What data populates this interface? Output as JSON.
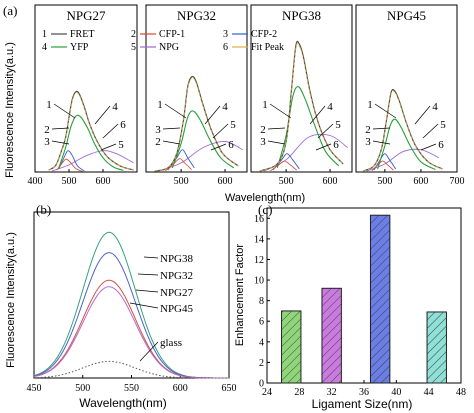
{
  "figure": {
    "panel_labels": [
      "(a)",
      "(b)",
      "(c)"
    ]
  },
  "chart_data": [
    {
      "panel": "(a)",
      "type": "line",
      "ylabel": "Fluorescence Intensity(a.u.)",
      "xlabel": "Wavelength(nm)",
      "xticks_by_sample": [
        [
          400,
          500,
          600
        ],
        [
          500,
          600
        ],
        [
          500,
          600
        ],
        [
          500,
          600,
          700
        ]
      ],
      "legend": [
        {
          "num": "1",
          "name": "FRET",
          "color": "#4a4a4a"
        },
        {
          "num": "2",
          "name": "CFP-1",
          "color": "#d9442b"
        },
        {
          "num": "3",
          "name": "CFP-2",
          "color": "#2f5fd0"
        },
        {
          "num": "4",
          "name": "YFP",
          "color": "#27a23c"
        },
        {
          "num": "5",
          "name": "NPG",
          "color": "#a36bd6"
        },
        {
          "num": "6",
          "name": "Fit Peak",
          "color": "#e0b03a"
        }
      ],
      "subplots": [
        {
          "name": "NPG27",
          "xlim": [
            400,
            700
          ],
          "peak": 395,
          "fret": [
            [
              440,
              10
            ],
            [
              460,
              30
            ],
            [
              475,
              90
            ],
            [
              490,
              170
            ],
            [
              500,
              270
            ],
            [
              510,
              360
            ],
            [
              520,
              395
            ],
            [
              530,
              385
            ],
            [
              545,
              320
            ],
            [
              560,
              240
            ],
            [
              580,
              160
            ],
            [
              610,
              80
            ],
            [
              650,
              30
            ],
            [
              690,
              10
            ]
          ],
          "yfp": [
            [
              470,
              20
            ],
            [
              490,
              120
            ],
            [
              505,
              220
            ],
            [
              520,
              275
            ],
            [
              535,
              270
            ],
            [
              555,
              215
            ],
            [
              575,
              140
            ],
            [
              600,
              70
            ],
            [
              630,
              25
            ],
            [
              660,
              8
            ]
          ],
          "cfp": [
            [
              470,
              15
            ],
            [
              485,
              70
            ],
            [
              497,
              105
            ],
            [
              510,
              80
            ],
            [
              525,
              30
            ],
            [
              545,
              5
            ]
          ],
          "npg": [
            [
              450,
              5
            ],
            [
              500,
              35
            ],
            [
              550,
              80
            ],
            [
              600,
              105
            ],
            [
              640,
              90
            ],
            [
              690,
              45
            ]
          ],
          "callouts": [
            "1",
            "2",
            "3",
            "4",
            "6",
            "5"
          ]
        },
        {
          "name": "NPG32",
          "xlim": [
            420,
            650
          ],
          "peak": 470,
          "fret": [
            [
              440,
              5
            ],
            [
              470,
              20
            ],
            [
              490,
              90
            ],
            [
              505,
              250
            ],
            [
              515,
              420
            ],
            [
              525,
              470
            ],
            [
              535,
              440
            ],
            [
              550,
              330
            ],
            [
              570,
              200
            ],
            [
              595,
              90
            ],
            [
              630,
              30
            ]
          ],
          "yfp": [
            [
              480,
              20
            ],
            [
              500,
              140
            ],
            [
              515,
              270
            ],
            [
              528,
              300
            ],
            [
              545,
              250
            ],
            [
              565,
              160
            ],
            [
              590,
              70
            ],
            [
              620,
              20
            ]
          ],
          "cfp": [
            [
              470,
              10
            ],
            [
              490,
              70
            ],
            [
              503,
              110
            ],
            [
              515,
              70
            ],
            [
              530,
              20
            ]
          ],
          "npg": [
            [
              450,
              5
            ],
            [
              500,
              45
            ],
            [
              550,
              120
            ],
            [
              600,
              150
            ],
            [
              640,
              110
            ]
          ],
          "callouts": [
            "1",
            "3",
            "2",
            "4",
            "5",
            "6"
          ]
        },
        {
          "name": "NPG38",
          "xlim": [
            420,
            650
          ],
          "peak": 630,
          "fret": [
            [
              440,
              5
            ],
            [
              480,
              40
            ],
            [
              500,
              150
            ],
            [
              512,
              400
            ],
            [
              522,
              620
            ],
            [
              530,
              630
            ],
            [
              540,
              560
            ],
            [
              555,
              390
            ],
            [
              575,
              230
            ],
            [
              600,
              110
            ],
            [
              630,
              40
            ]
          ],
          "yfp": [
            [
              480,
              20
            ],
            [
              500,
              180
            ],
            [
              515,
              370
            ],
            [
              528,
              420
            ],
            [
              545,
              350
            ],
            [
              565,
              230
            ],
            [
              590,
              100
            ],
            [
              620,
              30
            ]
          ],
          "cfp": [
            [
              470,
              10
            ],
            [
              490,
              60
            ],
            [
              502,
              90
            ],
            [
              515,
              60
            ],
            [
              530,
              15
            ]
          ],
          "npg": [
            [
              450,
              5
            ],
            [
              500,
              60
            ],
            [
              550,
              170
            ],
            [
              600,
              180
            ],
            [
              640,
              120
            ]
          ],
          "callouts": [
            "1",
            "2",
            "3",
            "4",
            "5",
            "6"
          ]
        },
        {
          "name": "NPG45",
          "xlim": [
            420,
            700
          ],
          "peak": 400,
          "fret": [
            [
              440,
              5
            ],
            [
              470,
              30
            ],
            [
              490,
              110
            ],
            [
              505,
              260
            ],
            [
              517,
              390
            ],
            [
              527,
              400
            ],
            [
              540,
              350
            ],
            [
              560,
              240
            ],
            [
              585,
              130
            ],
            [
              620,
              50
            ],
            [
              660,
              15
            ]
          ],
          "yfp": [
            [
              480,
              15
            ],
            [
              500,
              130
            ],
            [
              515,
              230
            ],
            [
              528,
              260
            ],
            [
              545,
              220
            ],
            [
              570,
              130
            ],
            [
              600,
              50
            ],
            [
              640,
              12
            ]
          ],
          "cfp": [
            [
              470,
              10
            ],
            [
              487,
              60
            ],
            [
              500,
              90
            ],
            [
              513,
              60
            ],
            [
              530,
              15
            ]
          ],
          "npg": [
            [
              450,
              5
            ],
            [
              500,
              40
            ],
            [
              550,
              100
            ],
            [
              600,
              110
            ],
            [
              650,
              70
            ]
          ],
          "callouts": [
            "1",
            "2",
            "3",
            "4",
            "5",
            "6"
          ]
        }
      ]
    },
    {
      "panel": "(b)",
      "type": "line",
      "xlabel": "Wavelength(nm)",
      "ylabel": "Fluorescence Intensity(a.u.)",
      "xlim": [
        450,
        650
      ],
      "xticks": [
        450,
        500,
        550,
        600,
        650
      ],
      "ylim": [
        0,
        180
      ],
      "peak_x": 527,
      "width": 38,
      "series": [
        {
          "name": "NPG38",
          "peak": 158,
          "color": "#35a37a",
          "style": "solid"
        },
        {
          "name": "NPG32",
          "peak": 136,
          "color": "#4a63c9",
          "style": "solid"
        },
        {
          "name": "NPG27",
          "peak": 106,
          "color": "#d0534a",
          "style": "solid"
        },
        {
          "name": "NPG45",
          "peak": 99,
          "color": "#b86bc8",
          "style": "solid"
        },
        {
          "name": "glass",
          "peak": 18,
          "color": "#555555",
          "style": "dotted"
        }
      ]
    },
    {
      "panel": "(c)",
      "type": "bar",
      "xlabel": "Ligament Size(nm)",
      "ylabel": "Enhancement Factor",
      "xlim": [
        24,
        48
      ],
      "xticks": [
        24,
        28,
        32,
        36,
        40,
        44,
        48
      ],
      "ylim": [
        0,
        17
      ],
      "yticks": [
        0,
        2,
        4,
        6,
        8,
        10,
        12,
        14,
        16
      ],
      "bars": [
        {
          "x": 27,
          "value": 7.0,
          "color": "#8fd67a"
        },
        {
          "x": 32,
          "value": 9.2,
          "color": "#c97be0"
        },
        {
          "x": 38,
          "value": 16.3,
          "color": "#6b7ee6"
        },
        {
          "x": 45,
          "value": 6.9,
          "color": "#8fe0d6"
        }
      ]
    }
  ]
}
